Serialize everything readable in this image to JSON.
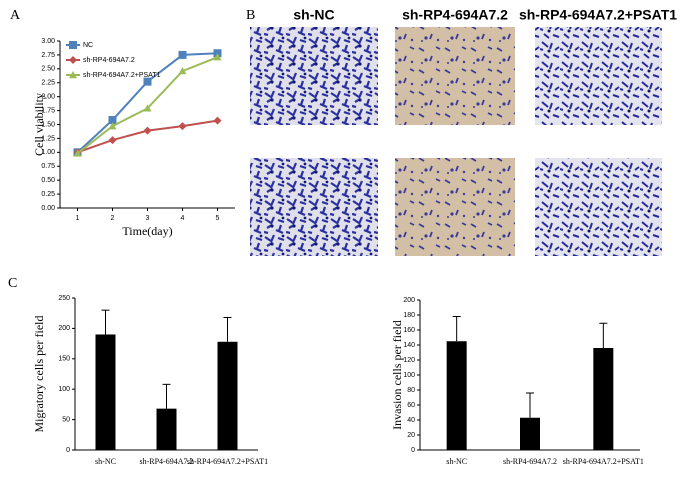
{
  "panel_labels": [
    "A",
    "B",
    "C"
  ],
  "images": {
    "columns": [
      "sh-NC",
      "sh-RP4-694A7.2",
      "sh-RP4-694A7.2+PSAT1"
    ]
  },
  "chart_data": [
    {
      "type": "line",
      "ylabel": "Cell viability",
      "xlabel": "Time(day)",
      "x": [
        1,
        2,
        3,
        4,
        5
      ],
      "xlim": [
        0.5,
        5.5
      ],
      "xticks": [
        1,
        2,
        3,
        4,
        5
      ],
      "ylim": [
        0,
        3
      ],
      "yticks": [
        {
          "value": 0,
          "label": "0.00"
        },
        {
          "value": 0.25,
          "label": "0.25"
        },
        {
          "value": 0.5,
          "label": "0.50"
        },
        {
          "value": 0.75,
          "label": "0.75"
        },
        {
          "value": 1,
          "label": "1.00"
        },
        {
          "value": 1.25,
          "label": "1.25"
        },
        {
          "value": 1.5,
          "label": "1.50"
        },
        {
          "value": 1.75,
          "label": "1.75"
        },
        {
          "value": 2,
          "label": "2.00"
        },
        {
          "value": 2.25,
          "label": "2.25"
        },
        {
          "value": 2.5,
          "label": "2.50"
        },
        {
          "value": 2.75,
          "label": "2.75"
        },
        {
          "value": 3,
          "label": "3.00"
        }
      ],
      "legend": "upper left",
      "series": [
        {
          "name": "NC",
          "color": "#4f81bd",
          "marker": "square",
          "values": [
            1.0,
            1.58,
            2.27,
            2.75,
            2.78
          ]
        },
        {
          "name": "sh-RP4-694A7.2",
          "color": "#c0504d",
          "marker": "diamond",
          "values": [
            1.0,
            1.22,
            1.39,
            1.47,
            1.57
          ]
        },
        {
          "name": "sh-RP4-694A7.2+PSAT1",
          "color": "#9bbb59",
          "marker": "triangle",
          "values": [
            0.98,
            1.47,
            1.79,
            2.46,
            2.71
          ]
        }
      ]
    },
    {
      "type": "bar",
      "ylabel": "Migratory cells per field",
      "categories": [
        "sh-NC",
        "sh-RP4-694A7.2",
        "sh-RP4-694A7.2+PSAT1"
      ],
      "values": [
        190,
        68,
        178
      ],
      "errors": [
        40,
        40,
        40
      ],
      "color": "#000000",
      "ylim": [
        0,
        250
      ],
      "yticks": [
        0,
        50,
        100,
        150,
        200,
        250
      ]
    },
    {
      "type": "bar",
      "ylabel": "Invasion cells per field",
      "categories": [
        "sh-NC",
        "sh-RP4-694A7.2",
        "sh-RP4-694A7.2+PSAT1"
      ],
      "values": [
        145,
        43,
        136
      ],
      "errors": [
        33,
        33,
        33
      ],
      "color": "#000000",
      "ylim": [
        0,
        200
      ],
      "yticks": [
        0,
        20,
        40,
        60,
        80,
        100,
        120,
        140,
        160,
        180,
        200
      ]
    }
  ]
}
